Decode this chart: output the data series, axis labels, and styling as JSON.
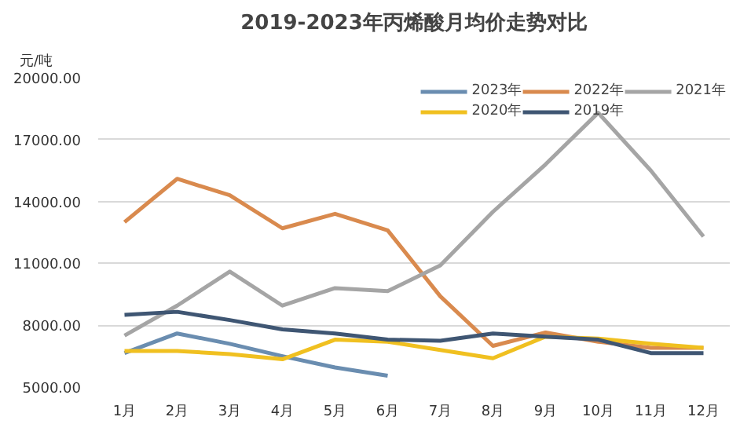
{
  "chart_data": {
    "type": "line",
    "title": "2019-2023年丙烯酸月均价走势对比",
    "ylabel": "元/吨",
    "categories": [
      "1月",
      "2月",
      "3月",
      "4月",
      "5月",
      "6月",
      "7月",
      "8月",
      "9月",
      "10月",
      "11月",
      "12月"
    ],
    "ylim": [
      5000,
      20000
    ],
    "yticks": [
      {
        "value": 5000,
        "label": "5000.00"
      },
      {
        "value": 8000,
        "label": "8000.00"
      },
      {
        "value": 11000,
        "label": "11000.00"
      },
      {
        "value": 14000,
        "label": "14000.00"
      },
      {
        "value": 17000,
        "label": "17000.00"
      },
      {
        "value": 20000,
        "label": "20000.00"
      }
    ],
    "grid": "y",
    "legend": "top right",
    "marker": "none",
    "line_style": "solid",
    "series": [
      {
        "name": "2023年",
        "color": "#6a8db0",
        "values": [
          6650,
          7600,
          7100,
          6500,
          5950,
          5550,
          null,
          null,
          null,
          null,
          null,
          null
        ]
      },
      {
        "name": "2022年",
        "color": "#d98a4e",
        "values": [
          13000,
          15100,
          14300,
          12700,
          13400,
          12600,
          9400,
          7000,
          7650,
          7200,
          6900,
          6900
        ]
      },
      {
        "name": "2021年",
        "color": "#a5a5a5",
        "values": [
          7500,
          8950,
          10600,
          8950,
          9800,
          9650,
          10900,
          13500,
          15800,
          18300,
          15500,
          12300
        ]
      },
      {
        "name": "2020年",
        "color": "#f0c020",
        "values": [
          6750,
          6750,
          6600,
          6350,
          7300,
          7200,
          6800,
          6400,
          7450,
          7350,
          7100,
          6900
        ]
      },
      {
        "name": "2019年",
        "color": "#3f5673",
        "values": [
          8500,
          8650,
          8250,
          7800,
          7600,
          7300,
          7250,
          7600,
          7450,
          7300,
          6650,
          6650
        ]
      }
    ]
  }
}
